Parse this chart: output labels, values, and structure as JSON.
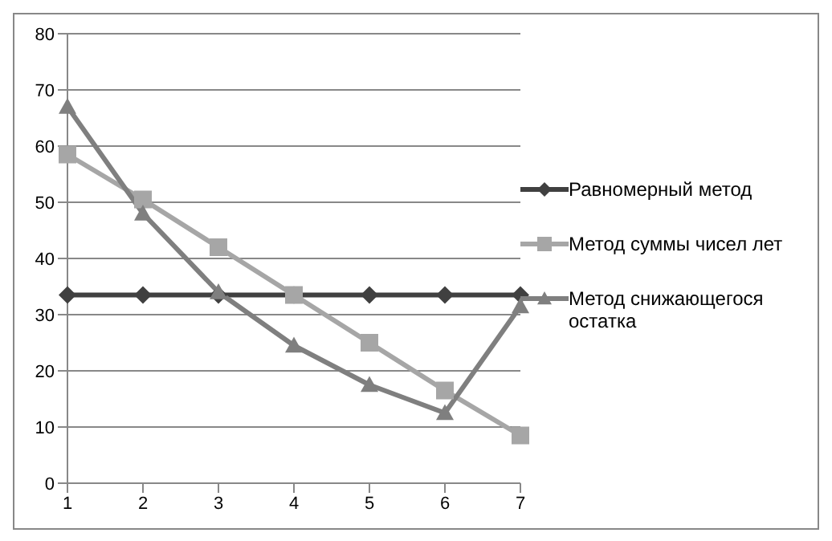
{
  "chart_data": {
    "type": "line",
    "categories": [
      "1",
      "2",
      "3",
      "4",
      "5",
      "6",
      "7"
    ],
    "series": [
      {
        "name": "Равномерный метод",
        "color": "#404040",
        "marker": "diamond",
        "values": [
          33.5,
          33.5,
          33.5,
          33.5,
          33.5,
          33.5,
          33.5
        ]
      },
      {
        "name": "Метод суммы чисел лет",
        "color": "#a6a6a6",
        "marker": "square",
        "values": [
          58.5,
          50.5,
          42,
          33.5,
          25,
          16.5,
          8.5
        ]
      },
      {
        "name": "Метод снижающегося остатка",
        "color": "#7f7f7f",
        "marker": "triangle",
        "values": [
          67,
          48,
          34,
          24.5,
          17.5,
          12.5,
          31.5
        ]
      }
    ],
    "ylim": [
      0,
      80
    ],
    "yticks": [
      0,
      10,
      20,
      30,
      40,
      50,
      60,
      70,
      80
    ],
    "grid": "y",
    "legend": "right",
    "line_style": "solid"
  }
}
